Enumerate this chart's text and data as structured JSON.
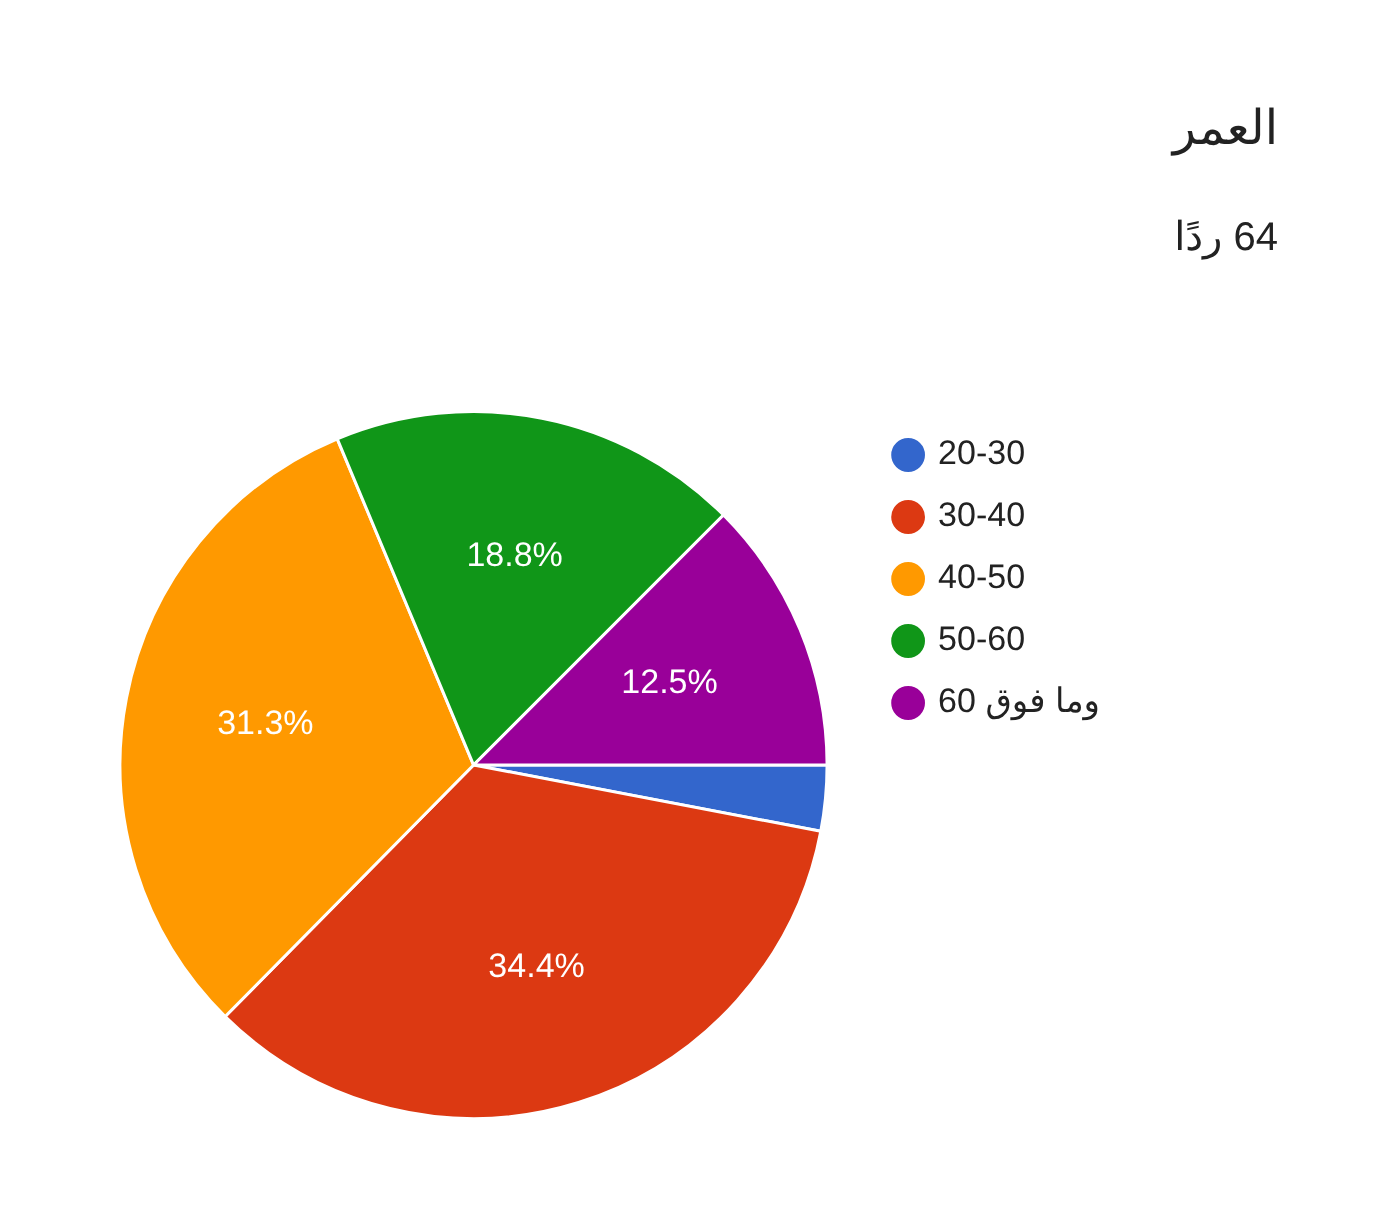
{
  "chart_data": {
    "type": "pie",
    "title": "العمر",
    "subtitle": "64 ردًا",
    "categories": [
      "20-30",
      "30-40",
      "40-50",
      "50-60",
      "وما فوق 60"
    ],
    "values": [
      3,
      34.4,
      31.3,
      18.8,
      12.5
    ],
    "colors": [
      "#3366cc",
      "#dc3912",
      "#ff9900",
      "#109618",
      "#990099"
    ],
    "value_labels": [
      null,
      "34.4%",
      "31.3%",
      "18.8%",
      "12.5%"
    ],
    "legend": "right"
  }
}
